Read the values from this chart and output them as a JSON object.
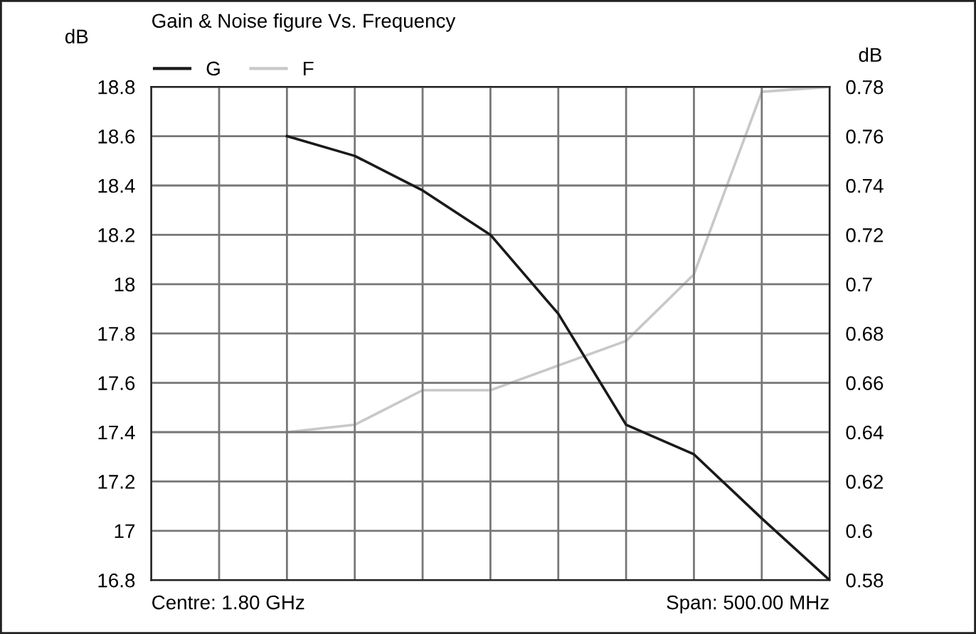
{
  "chart_data": {
    "type": "line",
    "title": "Gain & Noise figure Vs. Frequency",
    "ylabel": "dB",
    "y2label": "dB",
    "categories": [
      null,
      null,
      null,
      null,
      null,
      null,
      null,
      null,
      null,
      null,
      null
    ],
    "series": [
      {
        "name": "G",
        "color": "#1a1a1a",
        "values": [
          null,
          null,
          18.6,
          18.52,
          18.38,
          18.2,
          17.88,
          17.43,
          17.31,
          17.05,
          16.8
        ]
      },
      {
        "name": "F",
        "color": "#c8c8c8",
        "axis": "y2",
        "values": [
          null,
          null,
          0.64,
          0.643,
          0.657,
          0.657,
          0.667,
          0.677,
          0.704,
          0.778,
          0.78
        ]
      }
    ],
    "ylim": [
      16.8,
      18.8
    ],
    "yticks": [
      16.8,
      17,
      17.2,
      17.4,
      17.6,
      17.8,
      18,
      18.2,
      18.4,
      18.6,
      18.8
    ],
    "y2lim": [
      0.58,
      0.78
    ],
    "y2ticks": [
      0.58,
      0.6,
      0.62,
      0.64,
      0.66,
      0.68,
      0.7,
      0.72,
      0.74,
      0.76,
      0.78
    ],
    "grid": true,
    "legend": "top left",
    "marker": "none",
    "line_style": "solid",
    "annotations": [
      "Centre: 1.80 GHz",
      "Span: 500.00 MHz"
    ]
  }
}
